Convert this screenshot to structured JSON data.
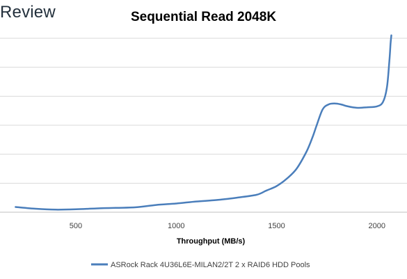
{
  "brand": {
    "text": "Review"
  },
  "chart_data": {
    "type": "line",
    "title": "Sequential Read 2048K",
    "xlabel": "Throughput (MB/s)",
    "ylabel": "",
    "xlim": [
      150,
      2150
    ],
    "ylim": [
      0,
      6
    ],
    "xticks": [
      500,
      1000,
      1500,
      2000
    ],
    "grid": "horizontal",
    "legend_position": "bottom",
    "colors": {
      "series": "#4a7ebb",
      "grid": "#d9d9d9",
      "axis": "#bfbfbf"
    },
    "series": [
      {
        "name": "ASRock Rack 4U36L6E-MILAN2/2T 2 x RAID6 HDD Pools",
        "x": [
          200,
          300,
          400,
          500,
          600,
          700,
          800,
          900,
          1000,
          1100,
          1200,
          1300,
          1400,
          1450,
          1500,
          1550,
          1600,
          1650,
          1680,
          1700,
          1730,
          1760,
          1790,
          1820,
          1850,
          1880,
          1910,
          1950,
          2000,
          2030,
          2050,
          2062,
          2068,
          2072
        ],
        "y": [
          0.18,
          0.12,
          0.09,
          0.1,
          0.13,
          0.15,
          0.17,
          0.25,
          0.3,
          0.37,
          0.42,
          0.5,
          0.6,
          0.75,
          0.9,
          1.15,
          1.5,
          2.1,
          2.6,
          3.0,
          3.55,
          3.72,
          3.75,
          3.72,
          3.66,
          3.62,
          3.6,
          3.62,
          3.65,
          3.8,
          4.3,
          5.2,
          5.8,
          6.1
        ]
      }
    ]
  }
}
